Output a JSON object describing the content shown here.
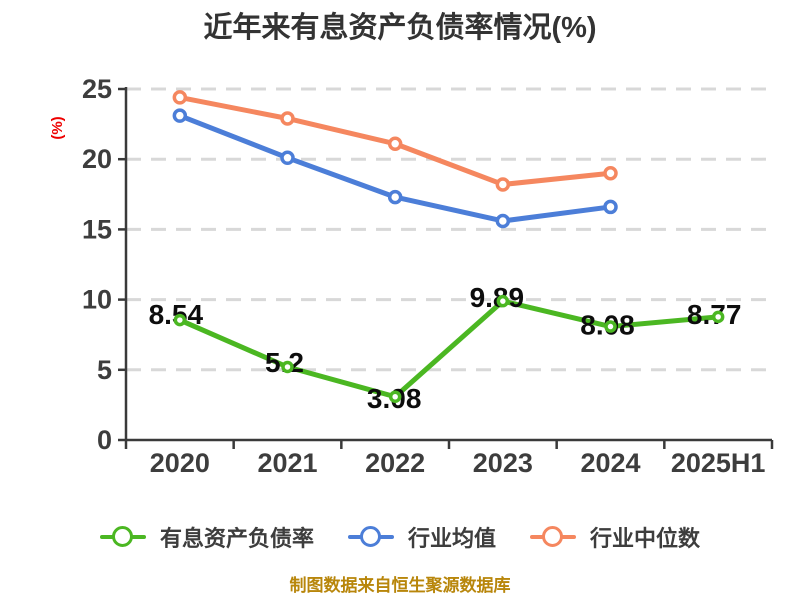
{
  "chart": {
    "title": "近年来有息资产负债率情况(%)"
  },
  "footer": {
    "source_text": "制图数据来自恒生聚源数据库"
  },
  "chart_data": {
    "type": "line",
    "title": "近年来有息资产负债率情况(%)",
    "xlabel": "",
    "ylabel": "(%)",
    "categories": [
      "2020",
      "2021",
      "2022",
      "2023",
      "2024",
      "2025H1"
    ],
    "ylim": [
      0,
      25
    ],
    "yticks": [
      0,
      5,
      10,
      15,
      20,
      25
    ],
    "grid": "horizontal-dashed",
    "legend_position": "bottom",
    "series": [
      {
        "id": "interest-bearing-debt-ratio",
        "name": "有息资产负债率",
        "color": "#4bb722",
        "values": [
          8.54,
          5.2,
          3.08,
          9.89,
          8.08,
          8.77
        ],
        "data_labels": [
          "8.54",
          "5.2",
          "3.08",
          "9.89",
          "8.08",
          "8.77"
        ],
        "label_offsets": [
          [
            -4,
            -6
          ],
          [
            -3,
            -5
          ],
          [
            -1,
            1
          ],
          [
            -6,
            -4
          ],
          [
            -3,
            -2
          ],
          [
            -4,
            -3
          ]
        ],
        "marker_radius": 4.5
      },
      {
        "id": "industry-average",
        "name": "行业均值",
        "color": "#4c7ed8",
        "values": [
          23.1,
          20.1,
          17.3,
          15.6,
          16.6
        ],
        "marker_radius": 5.5
      },
      {
        "id": "industry-median",
        "name": "行业中位数",
        "color": "#f5875f",
        "values": [
          24.4,
          22.9,
          21.1,
          18.2,
          19.0
        ],
        "marker_radius": 5.5
      }
    ],
    "colors": {
      "axis": "#3a3a3a",
      "grid": "#d8d8d8",
      "tick_label": "#3d3d3d",
      "data_label": "#0d0d0d",
      "ylabel": "#ee0000",
      "background": "#ffffff"
    }
  }
}
